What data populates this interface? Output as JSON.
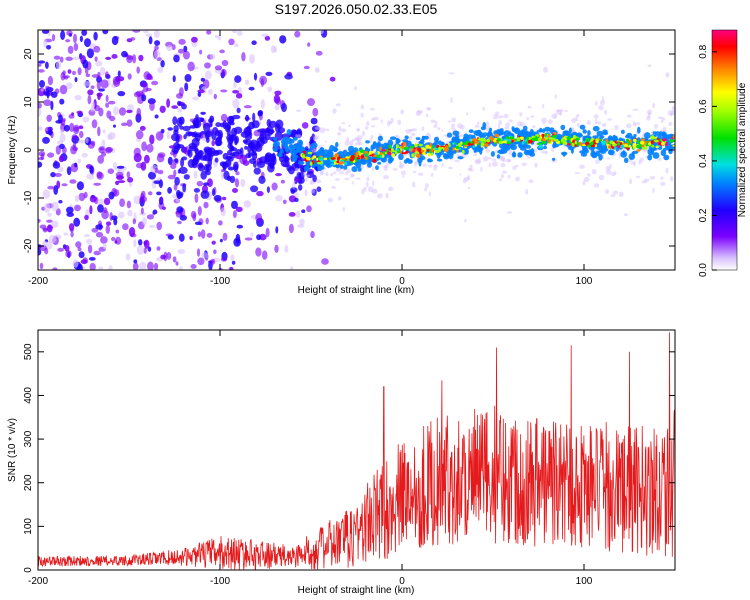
{
  "figure": {
    "title": "S197.2026.050.02.33.E05"
  },
  "chart_data": [
    {
      "type": "heatmap",
      "name": "spectrogram",
      "xlabel": "Height of straight line (km)",
      "ylabel": "Frequency (Hz)",
      "xlim": [
        -200,
        150
      ],
      "ylim": [
        -25,
        25
      ],
      "xticks": [
        -200,
        -100,
        0,
        100
      ],
      "yticks": [
        -20,
        -10,
        0,
        10,
        20
      ],
      "ridge": {
        "description_values": "peak frequency track (Hz) vs height (km)",
        "x": [
          -75,
          -60,
          -50,
          -40,
          -30,
          -20,
          -10,
          0,
          10,
          20,
          30,
          40,
          50,
          60,
          70,
          80,
          90,
          100,
          110,
          120,
          130,
          140,
          150
        ],
        "y": [
          1.5,
          0.5,
          -2,
          -2,
          -2,
          -1,
          -0.5,
          0,
          0,
          0.5,
          0.5,
          1.5,
          2,
          2,
          2,
          2.5,
          2,
          1.5,
          1.5,
          1,
          1,
          1.5,
          2
        ]
      },
      "colorbar": {
        "label": "Normalized spectral amplitude",
        "min": 0.0,
        "max": 0.88,
        "ticks": [
          0.0,
          0.2,
          0.4,
          0.6,
          0.8
        ],
        "tick_labels": [
          "0.0",
          "0.2",
          "0.4",
          "0.6",
          "0.8"
        ]
      }
    },
    {
      "type": "line",
      "name": "snr",
      "xlabel": "Height of straight line (km)",
      "ylabel": "SNR (10 * v/v)",
      "xlim": [
        -200,
        150
      ],
      "ylim": [
        0,
        550
      ],
      "xticks": [
        -200,
        -100,
        0,
        100
      ],
      "yticks": [
        0,
        100,
        200,
        300,
        400,
        500
      ],
      "color": "#e41a1c",
      "envelope": {
        "x": [
          -200,
          -150,
          -120,
          -100,
          -80,
          -60,
          -45,
          -30,
          -15,
          0,
          15,
          30,
          50,
          70,
          90,
          110,
          130,
          150
        ],
        "mean": [
          20,
          22,
          30,
          40,
          35,
          30,
          50,
          70,
          120,
          170,
          200,
          210,
          220,
          210,
          200,
          190,
          180,
          200
        ],
        "amplitude": [
          12,
          12,
          20,
          40,
          35,
          25,
          50,
          70,
          110,
          130,
          150,
          150,
          160,
          160,
          150,
          150,
          150,
          170
        ]
      },
      "peaks": [
        {
          "x": -10,
          "y": 420
        },
        {
          "x": 22,
          "y": 435
        },
        {
          "x": 52,
          "y": 510
        },
        {
          "x": 93,
          "y": 515
        },
        {
          "x": 125,
          "y": 500
        },
        {
          "x": 147,
          "y": 545
        }
      ]
    }
  ]
}
